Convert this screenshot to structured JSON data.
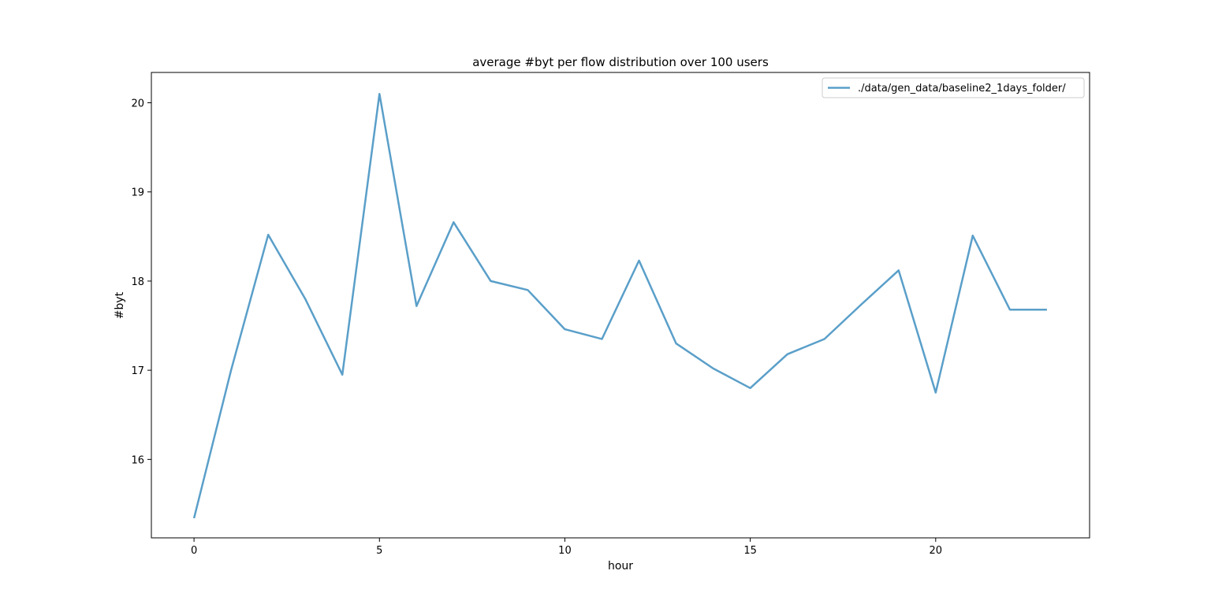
{
  "chart_data": {
    "type": "line",
    "title": "average #byt per flow distribution over 100 users",
    "xlabel": "hour",
    "ylabel": "#byt",
    "xlim": [
      -1.15,
      24.15
    ],
    "ylim": [
      15.12,
      20.34
    ],
    "xticks": [
      0,
      5,
      10,
      15,
      20
    ],
    "yticks": [
      16,
      17,
      18,
      19,
      20
    ],
    "grid": false,
    "legend_position": "top-right",
    "series": [
      {
        "name": "./data/gen_data/baseline2_1days_folder/",
        "color": "#5a9fc9",
        "x": [
          0,
          1,
          2,
          3,
          4,
          5,
          6,
          7,
          8,
          9,
          10,
          11,
          12,
          13,
          14,
          15,
          16,
          17,
          18,
          19,
          20,
          21,
          22,
          23
        ],
        "y": [
          15.34,
          17.0,
          18.52,
          17.8,
          16.95,
          20.1,
          17.72,
          18.66,
          18.0,
          17.9,
          17.46,
          17.35,
          18.23,
          17.3,
          17.02,
          16.8,
          17.18,
          17.35,
          17.74,
          18.12,
          16.75,
          18.51,
          17.68,
          17.68
        ]
      }
    ]
  }
}
